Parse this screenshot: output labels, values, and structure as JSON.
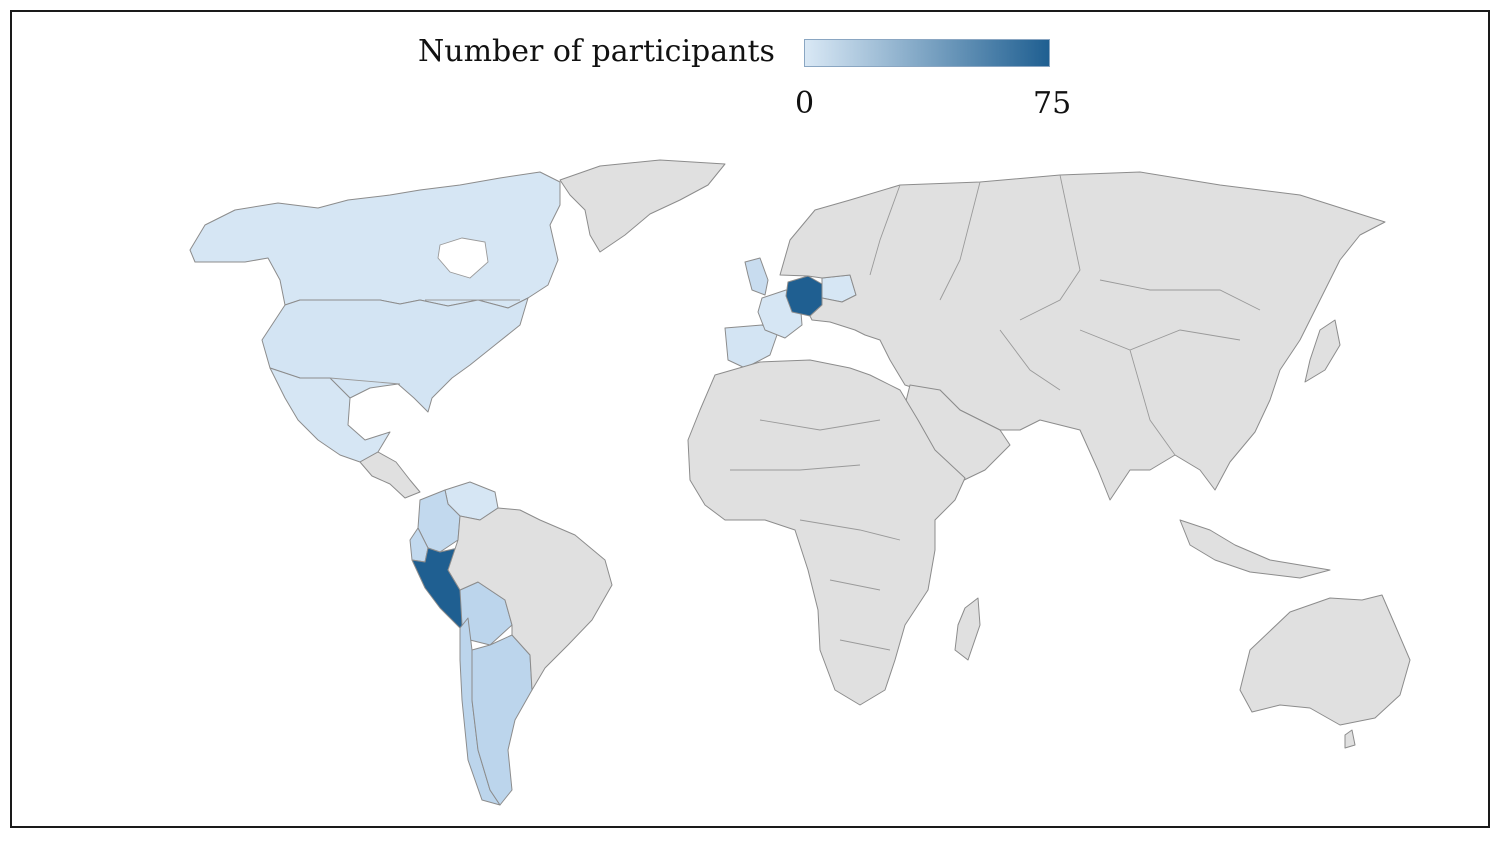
{
  "legend": {
    "title": "Number of participants",
    "min_label": "0",
    "max_label": "75",
    "color_low": "#d9e8f5",
    "color_high": "#1f5f91"
  },
  "colors": {
    "no_data": "#e0e0e0",
    "border": "#8c8c8c",
    "frame": "#1a1a1a"
  },
  "regions": [
    {
      "id": "canada",
      "name": "Canada",
      "level": "low",
      "color": "#d6e6f4"
    },
    {
      "id": "greenland",
      "name": "Greenland",
      "level": "none",
      "color": "#e0e0e0"
    },
    {
      "id": "usa",
      "name": "United States",
      "level": "low",
      "color": "#d3e4f3"
    },
    {
      "id": "mexico",
      "name": "Mexico",
      "level": "low",
      "color": "#d6e6f4"
    },
    {
      "id": "central-america",
      "name": "Central America",
      "level": "none",
      "color": "#e0e0e0"
    },
    {
      "id": "colombia",
      "name": "Colombia",
      "level": "low-mid",
      "color": "#c2d9ee"
    },
    {
      "id": "venezuela",
      "name": "Venezuela",
      "level": "low",
      "color": "#d6e6f4"
    },
    {
      "id": "ecuador",
      "name": "Ecuador",
      "level": "low-mid",
      "color": "#c2d9ee"
    },
    {
      "id": "peru",
      "name": "Peru",
      "level": "high",
      "color": "#1f5f91"
    },
    {
      "id": "bolivia",
      "name": "Bolivia",
      "level": "low-mid",
      "color": "#bcd5ec"
    },
    {
      "id": "chile",
      "name": "Chile",
      "level": "low-mid",
      "color": "#bcd5ec"
    },
    {
      "id": "argentina",
      "name": "Argentina",
      "level": "low-mid",
      "color": "#bcd5ec"
    },
    {
      "id": "brazil",
      "name": "Brazil",
      "level": "none",
      "color": "#e0e0e0"
    },
    {
      "id": "uk",
      "name": "United Kingdom",
      "level": "low-mid",
      "color": "#c8dcef"
    },
    {
      "id": "france",
      "name": "France",
      "level": "low",
      "color": "#d6e6f4"
    },
    {
      "id": "spain",
      "name": "Spain",
      "level": "low",
      "color": "#d3e4f3"
    },
    {
      "id": "germany",
      "name": "Germany",
      "level": "high",
      "color": "#1f5f91"
    },
    {
      "id": "poland",
      "name": "Poland",
      "level": "low",
      "color": "#d6e6f4"
    },
    {
      "id": "eurasia",
      "name": "Eurasia",
      "level": "none",
      "color": "#e0e0e0"
    },
    {
      "id": "africa",
      "name": "Africa",
      "level": "none",
      "color": "#e0e0e0"
    },
    {
      "id": "australia",
      "name": "Australia",
      "level": "none",
      "color": "#e0e0e0"
    }
  ]
}
